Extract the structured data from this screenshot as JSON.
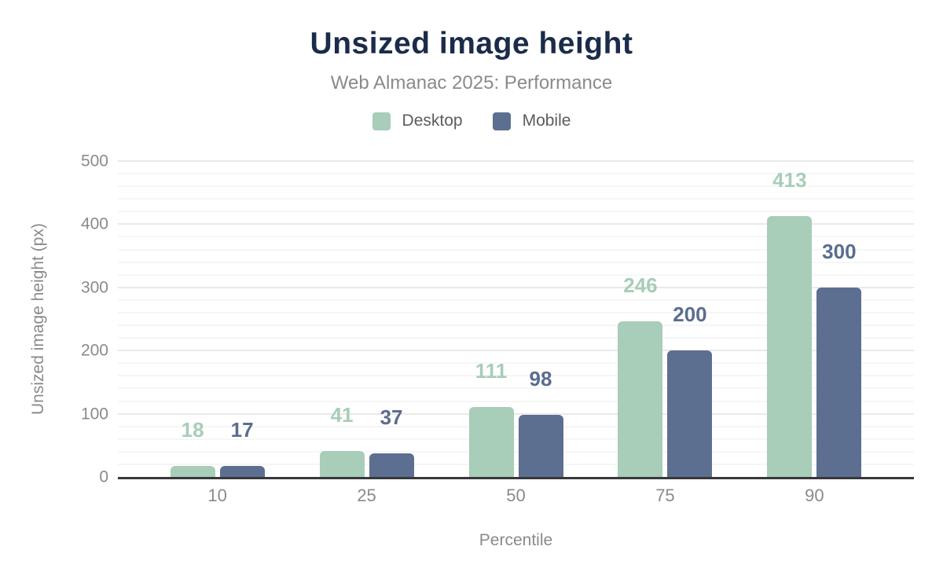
{
  "header": {
    "title": "Unsized image height",
    "subtitle": "Web Almanac 2025: Performance"
  },
  "legend": {
    "items": [
      {
        "label": "Desktop",
        "color": "#a8cdb8"
      },
      {
        "label": "Mobile",
        "color": "#5d6f90"
      }
    ]
  },
  "colors": {
    "title": "#1b2b4a",
    "subtitle_gray": "#8a8a8a",
    "axis_text_gray": "#8a8a8a",
    "legend_text_gray": "#5c5c5c",
    "axis_line": "#38383c",
    "grid_major": "#e9e9e9",
    "grid_minor": "#f6f6f6",
    "desktop": "#a8cdb8",
    "mobile": "#5d6f90",
    "desktop_label": "#a8cdb8",
    "mobile_label": "#5b6d8f"
  },
  "chart_data": {
    "type": "bar",
    "title": "Unsized image height",
    "subtitle": "Web Almanac 2025: Performance",
    "categories": [
      "10",
      "25",
      "50",
      "75",
      "90"
    ],
    "series": [
      {
        "name": "Desktop",
        "color": "#a8cdb8",
        "label_color": "#a8cdb8",
        "values": [
          18,
          41,
          111,
          246,
          413
        ]
      },
      {
        "name": "Mobile",
        "color": "#5d6f90",
        "label_color": "#5b6d8f",
        "values": [
          17,
          37,
          98,
          200,
          300
        ]
      }
    ],
    "xlabel": "Percentile",
    "ylabel": "Unsized image height (px)",
    "ylim": [
      0,
      500
    ],
    "y_major_step": 100,
    "y_minor_step": 20,
    "y_tick_labels": [
      "0",
      "100",
      "200",
      "300",
      "400",
      "500"
    ],
    "grid": true,
    "legend_position": "top",
    "value_labels": true
  }
}
